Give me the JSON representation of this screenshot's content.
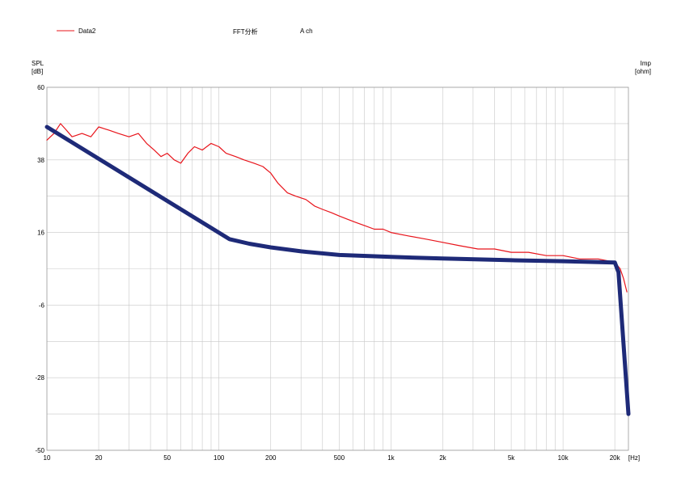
{
  "header": {
    "legend_label": "Data2",
    "analysis_title": "FFT分析",
    "channel": "A ch"
  },
  "colors": {
    "spl_line": "#e8141b",
    "reference_line": "#1e2a78",
    "grid": "#c8c8c8",
    "frame": "#999999"
  },
  "chart_data": {
    "type": "line",
    "x_scale": "log",
    "xlim": [
      10,
      24000
    ],
    "x_ticks": [
      10,
      20,
      50,
      100,
      200,
      500,
      1000,
      2000,
      5000,
      10000,
      20000
    ],
    "x_tick_labels": [
      "10",
      "20",
      "50",
      "100",
      "200",
      "500",
      "1k",
      "2k",
      "5k",
      "10k",
      "20k"
    ],
    "x_unit": "[Hz]",
    "ylabel_left": [
      "SPL",
      "[dB]"
    ],
    "ylabel_right": [
      "Imp",
      "[ohm]"
    ],
    "ylim": [
      -50,
      60
    ],
    "y_ticks": [
      60,
      38,
      16,
      -6,
      -28,
      -50
    ],
    "grid": true,
    "series": [
      {
        "name": "Data2",
        "color": "#e8141b",
        "x": [
          10,
          11,
          12,
          13,
          14,
          16,
          18,
          20,
          23,
          26,
          30,
          34,
          38,
          42,
          46,
          50,
          55,
          60,
          66,
          72,
          80,
          90,
          100,
          110,
          125,
          140,
          160,
          180,
          200,
          220,
          250,
          280,
          320,
          360,
          400,
          450,
          500,
          560,
          630,
          710,
          800,
          900,
          1000,
          1250,
          1600,
          2000,
          2500,
          3200,
          4000,
          5000,
          6300,
          8000,
          10000,
          12500,
          16000,
          20000,
          21500,
          22500,
          23500
        ],
        "y": [
          44,
          46,
          49,
          47,
          45,
          46,
          45,
          48,
          47,
          46,
          45,
          46,
          43,
          41,
          39,
          40,
          38,
          37,
          40,
          42,
          41,
          43,
          42,
          40,
          39,
          38,
          37,
          36,
          34,
          31,
          28,
          27,
          26,
          24,
          23,
          22,
          21,
          20,
          19,
          18,
          17,
          17,
          16,
          15,
          14,
          13,
          12,
          11,
          11,
          10,
          10,
          9,
          9,
          8,
          8,
          7,
          5,
          2,
          -2
        ]
      },
      {
        "name": "",
        "color": "#1e2a78",
        "x": [
          10,
          115,
          150,
          200,
          300,
          500,
          1000,
          2000,
          5000,
          10000,
          20000,
          21000,
          24000
        ],
        "y": [
          48,
          14,
          12.6,
          11.5,
          10.3,
          9.2,
          8.6,
          8.1,
          7.6,
          7.3,
          6.9,
          4,
          -39
        ]
      }
    ]
  }
}
